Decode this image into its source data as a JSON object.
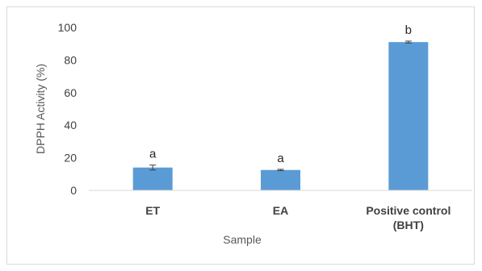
{
  "chart_data": {
    "type": "bar",
    "title": "",
    "xlabel": "Sample",
    "ylabel": "DPPH Activity (%)",
    "ylim": [
      0,
      100
    ],
    "yticks": [
      0,
      20,
      40,
      60,
      80,
      100
    ],
    "grid": false,
    "legend": "none",
    "categories": [
      [
        "ET"
      ],
      [
        "EA"
      ],
      [
        "Positive control",
        "(BHT)"
      ]
    ],
    "series": [
      {
        "values": [
          14,
          12.5,
          91
        ],
        "errors": [
          1.5,
          0.4,
          0.6
        ],
        "annotations": [
          "a",
          "a",
          "b"
        ],
        "color": "#5b9bd5"
      }
    ],
    "axis_color": "#d9d9d9",
    "error_color": "#404040"
  }
}
